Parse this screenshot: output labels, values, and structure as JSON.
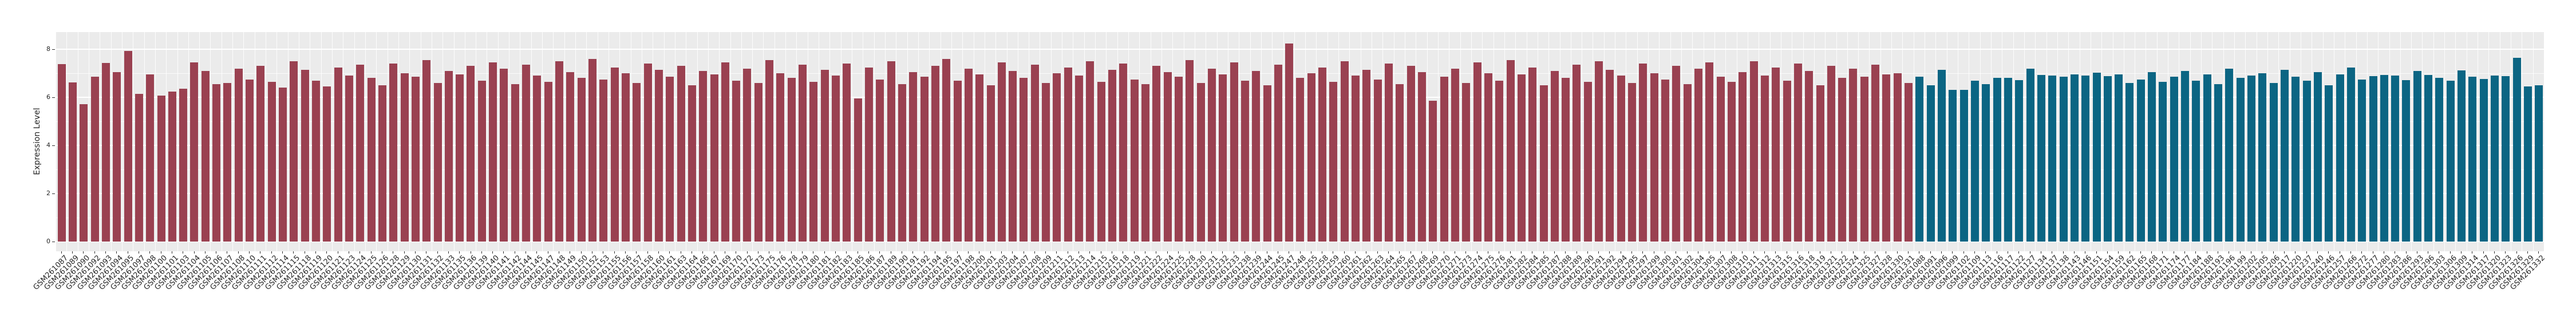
{
  "chart_data": {
    "type": "bar",
    "title": "",
    "xlabel": "",
    "ylabel": "Expression Level",
    "ylim": [
      0,
      8.7
    ],
    "yticks": [
      0,
      2,
      4,
      6,
      8
    ],
    "yticks_minor": [
      1,
      3,
      5,
      7
    ],
    "grid": true,
    "legend_position": "none",
    "panel_bg": "#EBEBEB",
    "grid_color": "#FFFFFF",
    "sample_prefix": "GSM261",
    "series": [
      {
        "name": "group-1",
        "color": "#9A4151",
        "suffixes": [
          "087",
          "089",
          "090",
          "092",
          "093",
          "094",
          "095",
          "097",
          "098",
          "100",
          "101",
          "103",
          "104",
          "105",
          "106",
          "107",
          "108",
          "110",
          "111",
          "112",
          "114",
          "115",
          "118",
          "119",
          "120",
          "121",
          "123",
          "124",
          "125",
          "126",
          "128",
          "129",
          "130",
          "131",
          "132",
          "133",
          "135",
          "136",
          "139",
          "140",
          "141",
          "142",
          "144",
          "145",
          "147",
          "148",
          "149",
          "150",
          "152",
          "153",
          "155",
          "156",
          "157",
          "158",
          "160",
          "161",
          "163",
          "164",
          "166",
          "167",
          "169",
          "170",
          "172",
          "173",
          "175",
          "176",
          "178",
          "179",
          "180",
          "181",
          "182",
          "183",
          "185",
          "186",
          "187",
          "189",
          "190",
          "191",
          "192",
          "194",
          "195",
          "197",
          "198",
          "200",
          "201",
          "203",
          "204",
          "207",
          "208",
          "209",
          "211",
          "212",
          "213",
          "214",
          "215",
          "216",
          "218",
          "219",
          "221",
          "222",
          "224",
          "225",
          "228",
          "230",
          "231",
          "232",
          "233",
          "238",
          "239",
          "244",
          "245",
          "247",
          "248",
          "255",
          "258",
          "259",
          "260",
          "261",
          "262",
          "263",
          "264",
          "265",
          "267",
          "268",
          "269",
          "270",
          "271",
          "273",
          "274",
          "275",
          "276",
          "281",
          "282",
          "284",
          "285",
          "287",
          "288",
          "289",
          "290",
          "291",
          "292",
          "294",
          "295",
          "297",
          "299",
          "300",
          "301",
          "302",
          "304",
          "305",
          "307",
          "308",
          "310",
          "311",
          "312",
          "313",
          "315",
          "316",
          "318",
          "319",
          "321",
          "322",
          "324",
          "325",
          "327",
          "328",
          "330",
          "331"
        ],
        "values": [
          7.38,
          6.62,
          5.72,
          6.85,
          7.42,
          7.05,
          7.93,
          6.15,
          6.95,
          6.08,
          6.24,
          6.36,
          7.45,
          7.1,
          6.55,
          6.6,
          7.2,
          6.75,
          7.3,
          6.65,
          6.4,
          7.5,
          7.15,
          6.7,
          6.45,
          7.25,
          6.9,
          7.35,
          6.8,
          6.5,
          7.4,
          7.0,
          6.85,
          7.55,
          6.6,
          7.1,
          6.95,
          7.3,
          6.7,
          7.45,
          7.2,
          6.55,
          7.35,
          6.9,
          6.65,
          7.5,
          7.05,
          6.8,
          7.6,
          6.75,
          7.25,
          7.0,
          6.6,
          7.4,
          7.15,
          6.85,
          7.3,
          6.5,
          7.1,
          6.95,
          7.45,
          6.7,
          7.2,
          6.6,
          7.55,
          7.0,
          6.8,
          7.35,
          6.65,
          7.15,
          6.9,
          7.4,
          5.95,
          7.25,
          6.75,
          7.5,
          6.55,
          7.05,
          6.85,
          7.3,
          7.6,
          6.7,
          7.2,
          6.95,
          6.5,
          7.45,
          7.1,
          6.8,
          7.35,
          6.6,
          7.0,
          7.25,
          6.9,
          7.5,
          6.65,
          7.15,
          7.4,
          6.75,
          6.55,
          7.3,
          7.05,
          6.85,
          7.55,
          6.6,
          7.2,
          6.95,
          7.45,
          6.7,
          7.1,
          6.5,
          7.35,
          8.25,
          6.8,
          7.0,
          7.25,
          6.65,
          7.5,
          6.9,
          7.15,
          6.75,
          7.4,
          6.55,
          7.3,
          7.05,
          5.85,
          6.85,
          7.2,
          6.6,
          7.45,
          7.0,
          6.7,
          7.55,
          6.95,
          7.25,
          6.5,
          7.1,
          6.8,
          7.35,
          6.65,
          7.5,
          7.15,
          6.9,
          6.6,
          7.4,
          7.0,
          6.75,
          7.3,
          6.55,
          7.2,
          7.45,
          6.85,
          6.65,
          7.05,
          7.5,
          6.9,
          7.25,
          6.7,
          7.4,
          7.1,
          6.5,
          7.3,
          6.8,
          7.2,
          6.85,
          7.35,
          6.95,
          7.0,
          6.6
        ]
      },
      {
        "name": "group-2",
        "color": "#0B6583",
        "suffixes": [
          "088",
          "091",
          "096",
          "099",
          "102",
          "109",
          "113",
          "116",
          "117",
          "122",
          "127",
          "134",
          "137",
          "138",
          "143",
          "146",
          "151",
          "154",
          "159",
          "162",
          "165",
          "168",
          "171",
          "174",
          "177",
          "184",
          "188",
          "193",
          "196",
          "199",
          "202",
          "205",
          "206",
          "217",
          "220",
          "237",
          "240",
          "246",
          "257",
          "266",
          "272",
          "277",
          "280",
          "283",
          "286",
          "293",
          "296",
          "303",
          "306",
          "309",
          "314",
          "317",
          "320",
          "323",
          "326",
          "329",
          "332"
        ],
        "values": [
          6.85,
          6.5,
          7.15,
          6.3,
          6.32,
          6.68,
          6.55,
          6.82,
          6.8,
          6.72,
          7.18,
          6.92,
          6.9,
          6.86,
          6.95,
          6.9,
          7.02,
          6.88,
          6.96,
          6.6,
          6.75,
          7.05,
          6.65,
          6.85,
          7.1,
          6.7,
          6.95,
          6.55,
          7.2,
          6.8,
          6.9,
          7.0,
          6.6,
          7.15,
          6.85,
          6.7,
          7.05,
          6.5,
          6.95,
          7.25,
          6.75,
          6.88,
          6.92,
          6.9,
          6.72,
          7.1,
          6.92,
          6.8,
          6.7,
          7.12,
          6.86,
          6.76,
          6.9,
          6.88,
          7.65,
          6.45,
          6.5
        ]
      }
    ]
  }
}
